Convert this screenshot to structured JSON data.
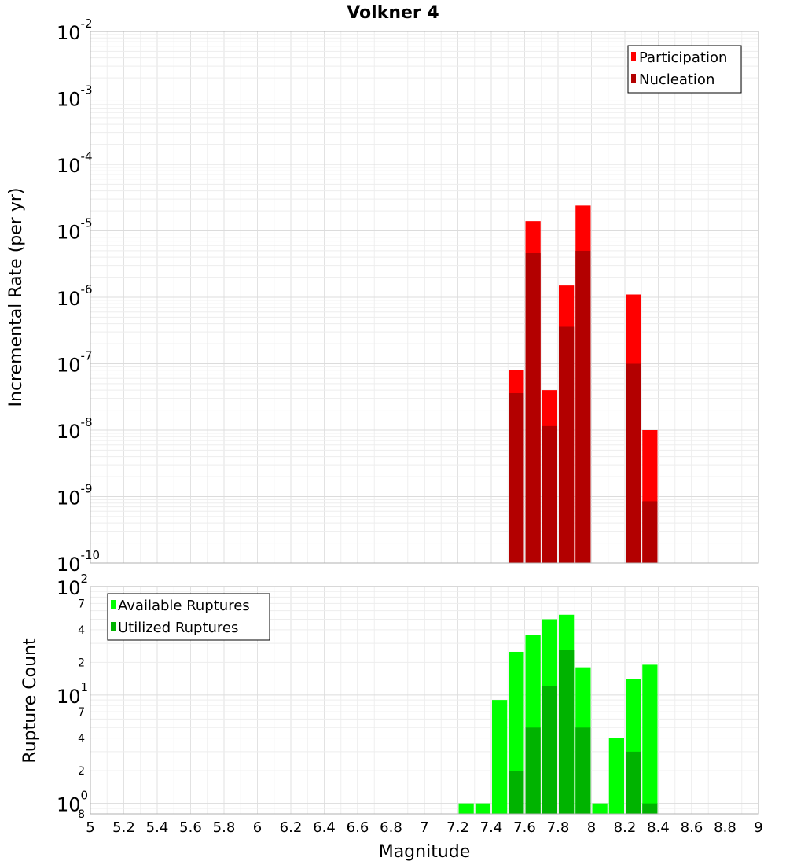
{
  "title": "Volkner 4",
  "chart_data": [
    {
      "type": "bar",
      "name": "rates",
      "ylabel": "Incremental Rate (per yr)",
      "yscale": "log",
      "ylim": [
        1e-10,
        0.01
      ],
      "ytick_labels": [
        {
          "value": 0.01,
          "base": "10",
          "exp": "-2"
        },
        {
          "value": 0.001,
          "base": "10",
          "exp": "-3"
        },
        {
          "value": 0.0001,
          "base": "10",
          "exp": "-4"
        },
        {
          "value": 1e-05,
          "base": "10",
          "exp": "-5"
        },
        {
          "value": 1e-06,
          "base": "10",
          "exp": "-6"
        },
        {
          "value": 1e-07,
          "base": "10",
          "exp": "-7"
        },
        {
          "value": 1e-08,
          "base": "10",
          "exp": "-8"
        },
        {
          "value": 1e-09,
          "base": "10",
          "exp": "-9"
        },
        {
          "value": 1e-10,
          "base": "10",
          "exp": "-10"
        }
      ],
      "bar_width": 0.1,
      "legend": {
        "position": "top-right"
      },
      "series": [
        {
          "name": "Participation",
          "color": "#ff0000",
          "x": [
            7.55,
            7.65,
            7.75,
            7.85,
            7.95,
            8.25,
            8.35
          ],
          "values": [
            8e-08,
            1.4e-05,
            4e-08,
            1.5e-06,
            2.4e-05,
            1.1e-06,
            1e-08
          ]
        },
        {
          "name": "Nucleation",
          "color": "#b30000",
          "x": [
            7.55,
            7.65,
            7.75,
            7.85,
            7.95,
            8.25,
            8.35
          ],
          "values": [
            3.6e-08,
            4.6e-06,
            1.15e-08,
            3.6e-07,
            5e-06,
            1e-07,
            8.5e-10
          ]
        }
      ]
    },
    {
      "type": "bar",
      "name": "counts",
      "ylabel": "Rupture Count",
      "yscale": "log",
      "ylim": [
        0.8,
        100
      ],
      "ytick_labels": [
        {
          "value": 100,
          "base": "10",
          "exp": "2"
        },
        {
          "value": 10,
          "base": "10",
          "exp": "1"
        },
        {
          "value": 1,
          "base": "10",
          "exp": "0"
        }
      ],
      "minor_tick_labels": [
        {
          "value": 70,
          "label": "7"
        },
        {
          "value": 40,
          "label": "4"
        },
        {
          "value": 20,
          "label": "2"
        },
        {
          "value": 7,
          "label": "7"
        },
        {
          "value": 4,
          "label": "4"
        },
        {
          "value": 2,
          "label": "2"
        },
        {
          "value": 0.8,
          "label": "8"
        }
      ],
      "bar_width": 0.1,
      "legend": {
        "position": "top-left"
      },
      "series": [
        {
          "name": "Available Ruptures",
          "color": "#00ff00",
          "x": [
            7.25,
            7.35,
            7.45,
            7.55,
            7.65,
            7.75,
            7.85,
            7.95,
            8.05,
            8.15,
            8.25,
            8.35
          ],
          "values": [
            1,
            1,
            9,
            25,
            36,
            50,
            55,
            18,
            1,
            4,
            14,
            19
          ]
        },
        {
          "name": "Utilized Ruptures",
          "color": "#00b300",
          "x": [
            7.55,
            7.65,
            7.75,
            7.85,
            7.95,
            8.25,
            8.35
          ],
          "values": [
            2,
            5,
            12,
            26,
            5,
            3,
            1
          ]
        }
      ]
    }
  ],
  "xaxis": {
    "label": "Magnitude",
    "range": [
      5,
      9
    ],
    "ticks": [
      "5",
      "5.2",
      "5.4",
      "5.6",
      "5.8",
      "6",
      "6.2",
      "6.4",
      "6.6",
      "6.8",
      "7",
      "7.2",
      "7.4",
      "7.6",
      "7.8",
      "8",
      "8.2",
      "8.4",
      "8.6",
      "8.8",
      "9"
    ]
  }
}
